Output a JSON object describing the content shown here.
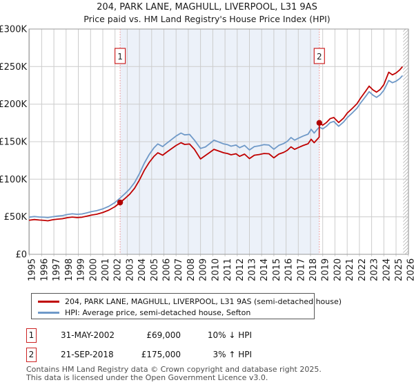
{
  "title": {
    "line1": "204, PARK LANE, MAGHULL, LIVERPOOL, L31 9AS",
    "line2": "Price paid vs. HM Land Registry's House Price Index (HPI)"
  },
  "legend": {
    "series1": "204, PARK LANE, MAGHULL, LIVERPOOL, L31 9AS (semi-detached house)",
    "series2": "HPI: Average price, semi-detached house, Sefton"
  },
  "annotations": [
    {
      "num": "1",
      "date": "31-MAY-2002",
      "price": "£69,000",
      "hpi": "10% ↓ HPI"
    },
    {
      "num": "2",
      "date": "21-SEP-2018",
      "price": "£175,000",
      "hpi": "3% ↑ HPI"
    }
  ],
  "footer": {
    "line1": "Contains HM Land Registry data © Crown copyright and database right 2025.",
    "line2": "This data is licensed under the Open Government Licence v3.0."
  },
  "chart_data": {
    "type": "line",
    "title": "204, PARK LANE, MAGHULL, LIVERPOOL, L31 9AS — Price paid vs. HPI",
    "xlabel": "",
    "ylabel": "",
    "xlim": [
      1994.9,
      2026.0
    ],
    "ylim": [
      0,
      300000
    ],
    "grid": true,
    "legend_position": "below",
    "x_ticks": [
      1995,
      1996,
      1997,
      1998,
      1999,
      2000,
      2001,
      2002,
      2003,
      2004,
      2005,
      2006,
      2007,
      2008,
      2009,
      2010,
      2011,
      2012,
      2013,
      2014,
      2015,
      2016,
      2017,
      2018,
      2019,
      2020,
      2021,
      2022,
      2023,
      2024,
      2025,
      2026
    ],
    "y_tick_values": [
      0,
      50000,
      100000,
      150000,
      200000,
      250000,
      300000
    ],
    "y_tick_labels": [
      "£0",
      "£50K",
      "£100K",
      "£150K",
      "£200K",
      "£250K",
      "£300K"
    ],
    "shaded_period": [
      2002.42,
      2018.72
    ],
    "future_hatch_start": 2025.58,
    "sales": [
      {
        "label": "1",
        "date": "31-MAY-2002",
        "date_decimal": 2002.42,
        "price": 69000,
        "vs_hpi": "10% below HPI"
      },
      {
        "label": "2",
        "date": "21-SEP-2018",
        "date_decimal": 2018.72,
        "price": 175000,
        "vs_hpi": "3% above HPI"
      }
    ],
    "colors": {
      "price_paid": "#c00000",
      "hpi": "#6f99c8",
      "shade": "#ecf1f9",
      "grid": "#cccccc",
      "border": "#999999",
      "dashed": "#ee8888",
      "marker": "#b00000",
      "flag_border": "#cc2222",
      "hatch": "#b5b5b5"
    },
    "series": [
      {
        "name": "HPI: Average price, semi-detached house, Sefton",
        "data_name": "hpi-line",
        "color": "#6f99c8",
        "points": [
          [
            1995.0,
            49500
          ],
          [
            1995.4,
            50300
          ],
          [
            1995.8,
            49700
          ],
          [
            1996.2,
            49300
          ],
          [
            1996.5,
            48900
          ],
          [
            1996.9,
            50100
          ],
          [
            1997.3,
            50900
          ],
          [
            1997.7,
            51500
          ],
          [
            1998.1,
            53000
          ],
          [
            1998.5,
            53900
          ],
          [
            1998.9,
            53300
          ],
          [
            1999.3,
            53700
          ],
          [
            1999.7,
            55200
          ],
          [
            2000.1,
            57000
          ],
          [
            2000.5,
            58100
          ],
          [
            2001.0,
            60500
          ],
          [
            2001.5,
            64000
          ],
          [
            2002.0,
            69000
          ],
          [
            2002.42,
            75000
          ],
          [
            2002.8,
            80500
          ],
          [
            2003.2,
            87000
          ],
          [
            2003.6,
            95500
          ],
          [
            2004.0,
            107500
          ],
          [
            2004.4,
            121500
          ],
          [
            2004.8,
            133000
          ],
          [
            2005.2,
            142000
          ],
          [
            2005.5,
            147000
          ],
          [
            2005.9,
            143500
          ],
          [
            2006.2,
            147500
          ],
          [
            2006.6,
            152500
          ],
          [
            2007.0,
            157500
          ],
          [
            2007.4,
            161500
          ],
          [
            2007.7,
            159000
          ],
          [
            2008.1,
            159700
          ],
          [
            2008.5,
            152000
          ],
          [
            2009.0,
            141000
          ],
          [
            2009.4,
            143000
          ],
          [
            2009.8,
            148000
          ],
          [
            2010.1,
            152000
          ],
          [
            2010.5,
            149500
          ],
          [
            2010.9,
            147000
          ],
          [
            2011.2,
            146000
          ],
          [
            2011.5,
            144000
          ],
          [
            2011.9,
            145500
          ],
          [
            2012.2,
            142000
          ],
          [
            2012.6,
            145000
          ],
          [
            2013.0,
            139000
          ],
          [
            2013.4,
            143500
          ],
          [
            2013.8,
            144500
          ],
          [
            2014.2,
            146000
          ],
          [
            2014.6,
            145500
          ],
          [
            2015.0,
            140000
          ],
          [
            2015.4,
            145000
          ],
          [
            2015.8,
            147500
          ],
          [
            2016.1,
            150500
          ],
          [
            2016.4,
            155500
          ],
          [
            2016.7,
            152000
          ],
          [
            2017.0,
            154500
          ],
          [
            2017.4,
            157500
          ],
          [
            2017.8,
            160000
          ],
          [
            2018.05,
            166500
          ],
          [
            2018.3,
            161500
          ],
          [
            2018.5,
            165500
          ],
          [
            2018.72,
            169500
          ],
          [
            2019.0,
            167000
          ],
          [
            2019.3,
            170500
          ],
          [
            2019.6,
            175300
          ],
          [
            2019.9,
            177000
          ],
          [
            2020.3,
            170500
          ],
          [
            2020.7,
            176000
          ],
          [
            2021.0,
            182000
          ],
          [
            2021.4,
            188000
          ],
          [
            2021.8,
            194500
          ],
          [
            2022.1,
            201500
          ],
          [
            2022.5,
            210000
          ],
          [
            2022.8,
            216500
          ],
          [
            2023.1,
            212000
          ],
          [
            2023.4,
            209000
          ],
          [
            2023.7,
            212500
          ],
          [
            2024.0,
            218500
          ],
          [
            2024.4,
            231500
          ],
          [
            2024.7,
            228500
          ],
          [
            2025.0,
            230500
          ],
          [
            2025.3,
            234000
          ],
          [
            2025.5,
            237500
          ]
        ]
      },
      {
        "name": "204, PARK LANE, MAGHULL, LIVERPOOL, L31 9AS (semi-detached house)",
        "data_name": "price-paid-line",
        "color": "#c00000",
        "points": [
          [
            1995.0,
            45500
          ],
          [
            1995.4,
            46300
          ],
          [
            1995.8,
            45600
          ],
          [
            1996.2,
            45200
          ],
          [
            1996.5,
            44600
          ],
          [
            1996.9,
            46000
          ],
          [
            1997.3,
            46800
          ],
          [
            1997.7,
            47400
          ],
          [
            1998.1,
            48800
          ],
          [
            1998.5,
            49600
          ],
          [
            1998.9,
            49000
          ],
          [
            1999.3,
            49400
          ],
          [
            1999.7,
            50800
          ],
          [
            2000.1,
            52400
          ],
          [
            2000.5,
            53400
          ],
          [
            2001.0,
            55700
          ],
          [
            2001.5,
            58900
          ],
          [
            2002.0,
            63500
          ],
          [
            2002.42,
            69000
          ],
          [
            2002.8,
            74100
          ],
          [
            2003.2,
            80000
          ],
          [
            2003.6,
            87900
          ],
          [
            2004.0,
            99000
          ],
          [
            2004.4,
            112000
          ],
          [
            2004.8,
            122400
          ],
          [
            2005.2,
            130600
          ],
          [
            2005.5,
            135200
          ],
          [
            2005.9,
            132000
          ],
          [
            2006.2,
            135700
          ],
          [
            2006.6,
            140300
          ],
          [
            2007.0,
            144900
          ],
          [
            2007.4,
            148600
          ],
          [
            2007.7,
            146300
          ],
          [
            2008.1,
            146900
          ],
          [
            2008.5,
            139800
          ],
          [
            2009.0,
            127000
          ],
          [
            2009.4,
            131600
          ],
          [
            2009.8,
            136200
          ],
          [
            2010.1,
            139800
          ],
          [
            2010.5,
            137500
          ],
          [
            2010.9,
            135200
          ],
          [
            2011.2,
            134300
          ],
          [
            2011.5,
            132500
          ],
          [
            2011.9,
            133900
          ],
          [
            2012.2,
            130500
          ],
          [
            2012.6,
            133400
          ],
          [
            2013.0,
            127500
          ],
          [
            2013.4,
            132000
          ],
          [
            2013.8,
            132900
          ],
          [
            2014.2,
            134300
          ],
          [
            2014.6,
            133900
          ],
          [
            2015.0,
            128500
          ],
          [
            2015.4,
            133400
          ],
          [
            2015.8,
            135700
          ],
          [
            2016.1,
            138500
          ],
          [
            2016.4,
            143100
          ],
          [
            2016.7,
            139800
          ],
          [
            2017.0,
            142100
          ],
          [
            2017.4,
            144900
          ],
          [
            2017.8,
            147200
          ],
          [
            2018.05,
            153200
          ],
          [
            2018.3,
            148600
          ],
          [
            2018.5,
            152300
          ],
          [
            2018.71,
            156000
          ],
          [
            2018.72,
            175000
          ],
          [
            2019.0,
            172000
          ],
          [
            2019.3,
            175500
          ],
          [
            2019.6,
            180600
          ],
          [
            2019.9,
            182200
          ],
          [
            2020.3,
            175500
          ],
          [
            2020.7,
            181200
          ],
          [
            2021.0,
            188000
          ],
          [
            2021.4,
            194000
          ],
          [
            2021.8,
            200500
          ],
          [
            2022.1,
            208000
          ],
          [
            2022.5,
            217000
          ],
          [
            2022.8,
            224000
          ],
          [
            2023.1,
            219000
          ],
          [
            2023.4,
            216000
          ],
          [
            2023.7,
            219500
          ],
          [
            2024.0,
            226000
          ],
          [
            2024.4,
            242500
          ],
          [
            2024.7,
            239000
          ],
          [
            2025.0,
            241500
          ],
          [
            2025.3,
            245500
          ],
          [
            2025.5,
            249500
          ]
        ]
      }
    ]
  }
}
